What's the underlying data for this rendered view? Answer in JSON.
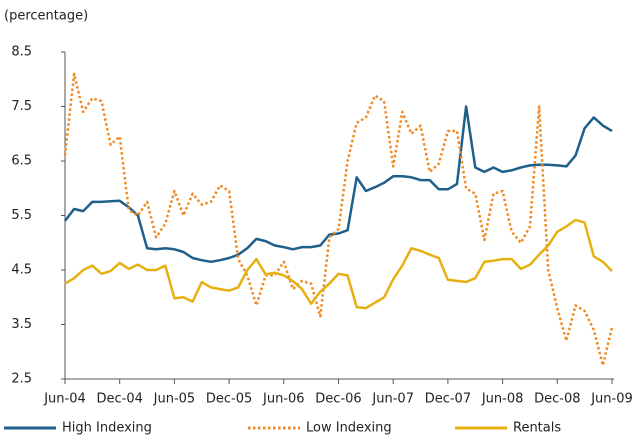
{
  "chart_data": {
    "type": "line",
    "y_label": "(percentage)",
    "categories": [
      "Jun-04",
      null,
      null,
      null,
      null,
      null,
      "Dec-04",
      null,
      null,
      null,
      null,
      null,
      "Jun-05",
      null,
      null,
      null,
      null,
      null,
      "Dec-05",
      null,
      null,
      null,
      null,
      null,
      "Jun-06",
      null,
      null,
      null,
      null,
      null,
      "Dec-06",
      null,
      null,
      null,
      null,
      null,
      "Jun-07",
      null,
      null,
      null,
      null,
      null,
      "Dec-07",
      null,
      null,
      null,
      null,
      null,
      "Jun-08",
      null,
      null,
      null,
      null,
      null,
      "Dec-08",
      null,
      null,
      null,
      null,
      null,
      "Jun-09"
    ],
    "ylim": [
      2.5,
      8.5
    ],
    "yticks": [
      2.5,
      3.5,
      4.5,
      5.5,
      6.5,
      7.5,
      8.5
    ],
    "grid": false,
    "series": [
      {
        "name": "High Indexing",
        "color": "#1f5f8b",
        "values": [
          5.4,
          5.62,
          5.58,
          5.75,
          5.75,
          5.76,
          5.77,
          5.65,
          5.5,
          4.9,
          4.88,
          4.9,
          4.88,
          4.83,
          4.72,
          4.68,
          4.65,
          4.68,
          4.72,
          4.78,
          4.9,
          5.07,
          5.03,
          4.95,
          4.92,
          4.88,
          4.92,
          4.92,
          4.95,
          5.15,
          5.17,
          5.23,
          6.2,
          5.95,
          6.02,
          6.1,
          6.22,
          6.22,
          6.2,
          6.15,
          6.15,
          5.98,
          5.98,
          6.08,
          7.5,
          6.38,
          6.3,
          6.38,
          6.3,
          6.33,
          6.38,
          6.42,
          6.43,
          6.43,
          6.42,
          6.4,
          6.6,
          7.1,
          7.3,
          7.15,
          7.05
        ]
      },
      {
        "name": "Low Indexing",
        "color": "#f08a24",
        "dashed": true,
        "values": [
          6.6,
          8.1,
          7.4,
          7.65,
          7.6,
          6.8,
          6.95,
          5.6,
          5.5,
          5.75,
          5.1,
          5.35,
          5.95,
          5.5,
          5.9,
          5.7,
          5.75,
          6.05,
          5.95,
          4.7,
          4.4,
          3.85,
          4.4,
          4.4,
          4.65,
          4.15,
          4.3,
          4.25,
          3.65,
          5.1,
          5.25,
          6.5,
          7.2,
          7.3,
          7.7,
          7.6,
          6.4,
          7.4,
          7.0,
          7.15,
          6.3,
          6.45,
          7.05,
          7.05,
          6.0,
          5.9,
          5.05,
          5.9,
          5.95,
          5.2,
          5.0,
          5.3,
          7.5,
          4.5,
          3.8,
          3.2,
          3.85,
          3.75,
          3.4,
          2.75,
          3.45
        ]
      },
      {
        "name": "Rentals",
        "color": "#e6b012",
        "values": [
          4.25,
          4.35,
          4.5,
          4.58,
          4.43,
          4.48,
          4.63,
          4.52,
          4.6,
          4.5,
          4.5,
          4.58,
          3.98,
          4.0,
          3.92,
          4.28,
          4.18,
          4.15,
          4.12,
          4.18,
          4.5,
          4.7,
          4.42,
          4.45,
          4.4,
          4.3,
          4.15,
          3.88,
          4.1,
          4.25,
          4.43,
          4.4,
          3.82,
          3.8,
          3.9,
          4.0,
          4.33,
          4.58,
          4.9,
          4.85,
          4.78,
          4.72,
          4.32,
          4.3,
          4.28,
          4.35,
          4.65,
          4.67,
          4.7,
          4.7,
          4.52,
          4.6,
          4.78,
          4.95,
          5.2,
          5.3,
          5.42,
          5.37,
          4.75,
          4.65,
          4.48
        ]
      }
    ]
  }
}
